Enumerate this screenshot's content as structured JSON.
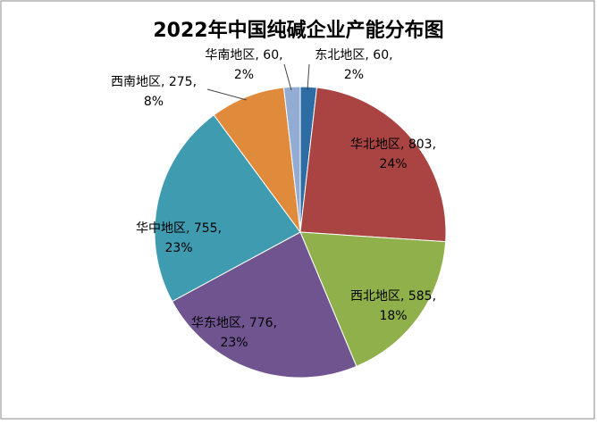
{
  "chart_data": {
    "type": "pie",
    "title": "2022年中国纯碱企业产能分布图",
    "categories": [
      "东北地区",
      "华北地区",
      "西北地区",
      "华东地区",
      "华中地区",
      "西南地区",
      "华南地区"
    ],
    "values": [
      60,
      803,
      585,
      776,
      755,
      275,
      60
    ],
    "value_labels": [
      ", 60,",
      ", 803,",
      ", 585,",
      ", 776,",
      ", 755,",
      ", 275,",
      ", 60,"
    ],
    "percent_labels": [
      "2%",
      "24%",
      "18%",
      "23%",
      "23%",
      "8%",
      "2%"
    ],
    "colors": [
      "#2e6ca4",
      "#a94442",
      "#8fb04a",
      "#6f548f",
      "#3f9bb0",
      "#e08a3c",
      "#93acd4"
    ]
  }
}
